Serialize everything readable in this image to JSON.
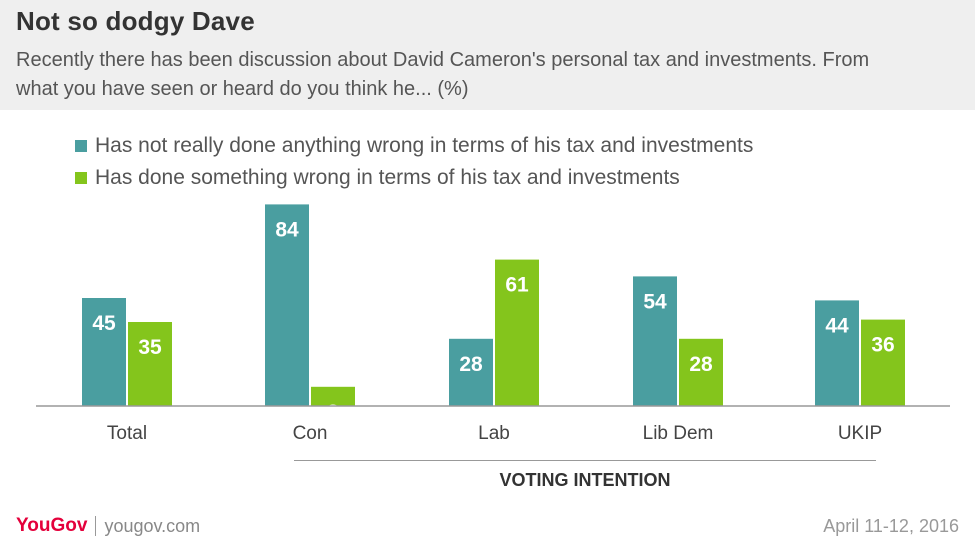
{
  "header": {
    "title": "Not so dodgy Dave",
    "subtitle": "Recently there has been discussion about David Cameron's personal tax and investments. From what you have seen or heard do you think he... (%)"
  },
  "colors": {
    "teal": "#4a9ea0",
    "green": "#84c51c",
    "axis": "#999999"
  },
  "chart_data": {
    "type": "bar",
    "categories": [
      "Total",
      "Con",
      "Lab",
      "Lib Dem",
      "UKIP"
    ],
    "series": [
      {
        "name": "Has not really done anything wrong in terms of his tax and investments",
        "values": [
          45,
          84,
          28,
          54,
          44
        ],
        "color": "#4a9ea0"
      },
      {
        "name": "Has done something wrong in terms of his tax and investments",
        "values": [
          35,
          8,
          61,
          28,
          36
        ],
        "color": "#84c51c"
      }
    ],
    "group_label": "VOTING INTENTION",
    "ylim": [
      0,
      100
    ],
    "grid": false,
    "legend_placement": "top-left"
  },
  "footer": {
    "brand": "YouGov",
    "site": "yougov.com",
    "date": "April 11-12, 2016"
  }
}
